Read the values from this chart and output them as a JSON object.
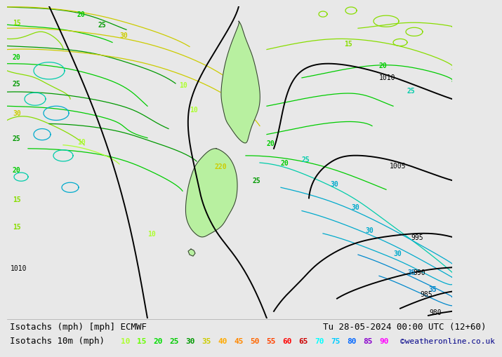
{
  "title_line1": "Isotachs (mph) [mph] ECMWF",
  "title_line2": "Isotachs 10m (mph)",
  "date_str": "Tu 28-05-2024 00:00 UTC (12+60)",
  "credit": "©weatheronline.co.uk",
  "legend_values": [
    10,
    15,
    20,
    25,
    30,
    35,
    40,
    45,
    50,
    55,
    60,
    65,
    70,
    75,
    80,
    85,
    90
  ],
  "legend_colors": [
    "#adff2f",
    "#66ff00",
    "#00dd00",
    "#00cc00",
    "#009900",
    "#cccc00",
    "#ffaa00",
    "#ff8800",
    "#ff6600",
    "#ff4400",
    "#ff0000",
    "#cc0000",
    "#00ffff",
    "#00ccff",
    "#0066ff",
    "#8800cc",
    "#ff00ff"
  ],
  "bg_color": "#e8e8e8",
  "map_bg": "#f0f0ee",
  "text_color": "#000000",
  "font_size_label": 9,
  "font_size_legend": 8,
  "isobar_color": "#000000",
  "isobar_lw": 1.4,
  "nz_fill_color": "#b8f0a0",
  "nz_edge_color": "#333333"
}
